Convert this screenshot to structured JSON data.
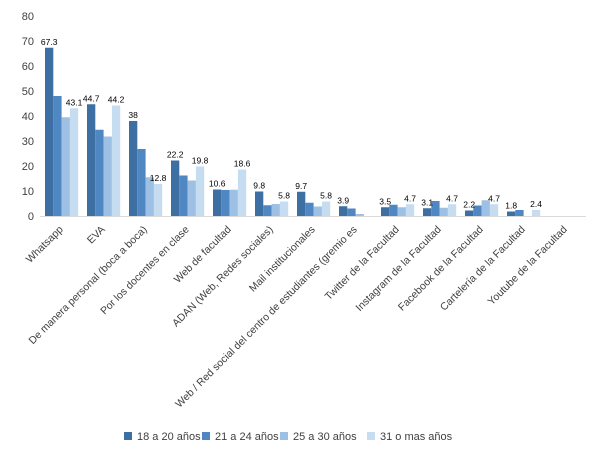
{
  "chart_data": {
    "type": "bar",
    "title": "",
    "xlabel": "",
    "ylabel": "",
    "ylim": [
      0,
      80
    ],
    "yticks": [
      0,
      10,
      20,
      30,
      40,
      50,
      60,
      70,
      80
    ],
    "grid": false,
    "legend_position": "bottom",
    "categories": [
      "Whatsapp",
      "EVA",
      "De manera personal (boca a boca)",
      "Por los docentes en clase",
      "Web de facultad",
      "ADAN (Web, Redes sociales)",
      "Mail institucionales",
      "Web / Red social del centro de estudiantes (gremio es",
      "Twitter de la Facultad",
      "Instagram de la Facultad",
      "Facebook de la Facultad",
      "Cartelería de la Facultad",
      "Youtube de la Facultad"
    ],
    "series": [
      {
        "name": "18 a 20 años",
        "color": "#3d6fa3",
        "values": [
          67.3,
          44.7,
          38,
          22.2,
          10.6,
          9.8,
          9.7,
          3.9,
          3.5,
          3.1,
          2.2,
          1.8,
          0
        ]
      },
      {
        "name": "21 a 24 años",
        "color": "#4f87c2",
        "values": [
          48,
          34.5,
          26.8,
          16.2,
          10.4,
          4.3,
          5.3,
          3.0,
          4.5,
          6.0,
          4.2,
          2.4,
          0
        ]
      },
      {
        "name": "25 a 30 años",
        "color": "#9dc0e4",
        "values": [
          39.5,
          31.8,
          15.5,
          14.2,
          10.5,
          4.8,
          3.8,
          0.8,
          3.5,
          3.3,
          6.3,
          0,
          0
        ]
      },
      {
        "name": "31  o mas años",
        "color": "#c6dcf1",
        "values": [
          43.1,
          44.2,
          12.8,
          19.8,
          18.6,
          5.8,
          5.8,
          0,
          4.7,
          4.7,
          4.7,
          2.4,
          0
        ]
      }
    ],
    "data_labels": [
      [
        {
          "series": 0,
          "text": "67.3"
        },
        {
          "series": 3,
          "text": "43.1"
        }
      ],
      [
        {
          "series": 0,
          "text": "44.7"
        },
        {
          "series": 3,
          "text": "44.2"
        }
      ],
      [
        {
          "series": 0,
          "text": "38"
        },
        {
          "series": 3,
          "text": "12.8"
        }
      ],
      [
        {
          "series": 0,
          "text": "22.2"
        },
        {
          "series": 3,
          "text": "19.8"
        }
      ],
      [
        {
          "series": 0,
          "text": "10.6"
        },
        {
          "series": 3,
          "text": "18.6"
        }
      ],
      [
        {
          "series": 0,
          "text": "9.8"
        },
        {
          "series": 3,
          "text": "5.8"
        }
      ],
      [
        {
          "series": 0,
          "text": "9.7"
        },
        {
          "series": 3,
          "text": "5.8"
        }
      ],
      [
        {
          "series": 0,
          "text": "3.9"
        }
      ],
      [
        {
          "series": 0,
          "text": "3.5"
        },
        {
          "series": 3,
          "text": "4.7"
        }
      ],
      [
        {
          "series": 0,
          "text": "3.1"
        },
        {
          "series": 3,
          "text": "4.7"
        }
      ],
      [
        {
          "series": 0,
          "text": "2.2"
        },
        {
          "series": 3,
          "text": "4.7"
        }
      ],
      [
        {
          "series": 0,
          "text": "1.8"
        },
        {
          "series": 3,
          "text": "2.4"
        }
      ],
      []
    ]
  }
}
